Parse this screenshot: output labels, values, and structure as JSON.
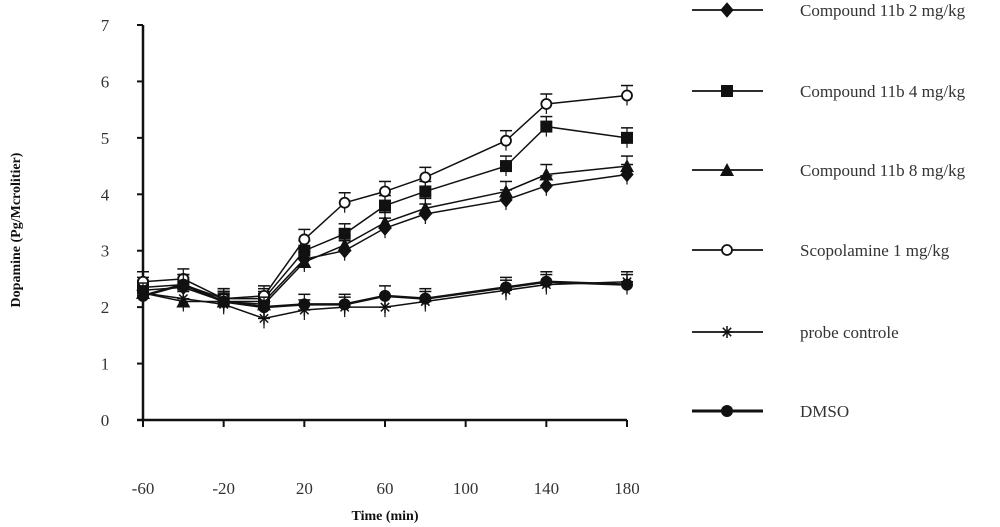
{
  "chart_data": {
    "type": "line",
    "title": "",
    "xlabel": "Time (min)",
    "ylabel": "Dopamine (Pg/Mcrolitier)",
    "xlim": [
      -60,
      180
    ],
    "ylim": [
      0,
      7
    ],
    "x_ticks": [
      -60,
      -20,
      20,
      60,
      100,
      140,
      180
    ],
    "x_tick_labels": [
      "-60",
      "-20",
      "20",
      "60",
      "100",
      "140",
      "180"
    ],
    "y_ticks": [
      0,
      1,
      2,
      3,
      4,
      5,
      6,
      7
    ],
    "y_tick_labels": [
      "0",
      "1",
      "2",
      "3",
      "4",
      "5",
      "6",
      "7"
    ],
    "grid": false,
    "legend_position": "right",
    "x": [
      -60,
      -40,
      -20,
      0,
      20,
      40,
      60,
      80,
      120,
      140,
      180
    ],
    "series": [
      {
        "name": "Compound 11b 2 mg/kg",
        "marker": "diamond",
        "values": [
          2.3,
          2.35,
          2.1,
          2.1,
          2.85,
          3.0,
          3.4,
          3.65,
          3.9,
          4.15,
          4.35
        ]
      },
      {
        "name": "Compound 11b 4 mg/kg",
        "marker": "square",
        "values": [
          2.35,
          2.4,
          2.15,
          2.15,
          3.0,
          3.3,
          3.8,
          4.05,
          4.5,
          5.2,
          5.0
        ]
      },
      {
        "name": "Compound 11b 8 mg/kg",
        "marker": "triangle",
        "values": [
          2.25,
          2.1,
          2.1,
          2.05,
          2.8,
          3.1,
          3.5,
          3.75,
          4.05,
          4.35,
          4.5
        ]
      },
      {
        "name": "Scopolamine 1 mg/kg",
        "marker": "open-circle",
        "values": [
          2.45,
          2.5,
          2.15,
          2.2,
          3.2,
          3.85,
          4.05,
          4.3,
          4.95,
          5.6,
          5.75
        ]
      },
      {
        "name": "probe controle",
        "marker": "star",
        "values": [
          2.25,
          2.15,
          2.05,
          1.8,
          1.95,
          2.0,
          2.0,
          2.1,
          2.3,
          2.4,
          2.45
        ]
      },
      {
        "name": "DMSO",
        "marker": "hexagon",
        "values": [
          2.2,
          2.4,
          2.1,
          2.0,
          2.05,
          2.05,
          2.2,
          2.15,
          2.35,
          2.45,
          2.4
        ]
      }
    ]
  }
}
